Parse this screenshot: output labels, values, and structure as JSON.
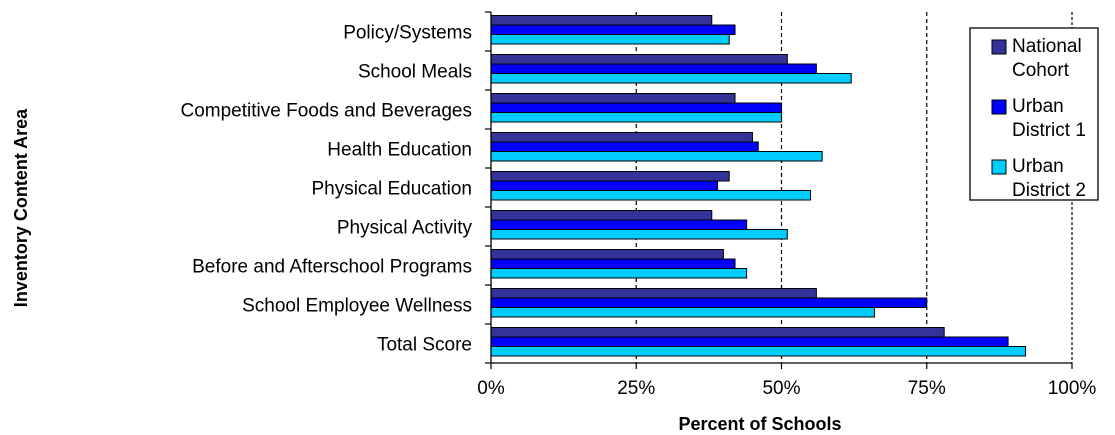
{
  "chart_data": {
    "type": "bar",
    "orientation": "horizontal",
    "title": "",
    "xlabel": "Percent of Schools",
    "ylabel": "Inventory Content Area",
    "xlim": [
      0,
      100
    ],
    "xticks": [
      "0%",
      "25%",
      "50%",
      "75%",
      "100%"
    ],
    "grid": "vertical dashed at 25%, 50%, 75%, 100%",
    "legend_position": "right",
    "categories": [
      "Policy/Systems",
      "School Meals",
      "Competitive Foods and Beverages",
      "Health Education",
      "Physical Education",
      "Physical Activity",
      "Before and Afterschool Programs",
      "School Employee Wellness",
      "Total Score"
    ],
    "series": [
      {
        "name_lines": [
          "National",
          "Cohort"
        ],
        "color": "#333399",
        "values": [
          38,
          51,
          42,
          45,
          41,
          38,
          40,
          56,
          78
        ]
      },
      {
        "name_lines": [
          "Urban",
          "District 1"
        ],
        "color": "#0000ff",
        "values": [
          42,
          56,
          50,
          46,
          39,
          44,
          42,
          75,
          89
        ]
      },
      {
        "name_lines": [
          "Urban",
          "District 2"
        ],
        "color": "#00ccff",
        "values": [
          41,
          62,
          50,
          57,
          55,
          51,
          44,
          66,
          92
        ]
      }
    ]
  }
}
